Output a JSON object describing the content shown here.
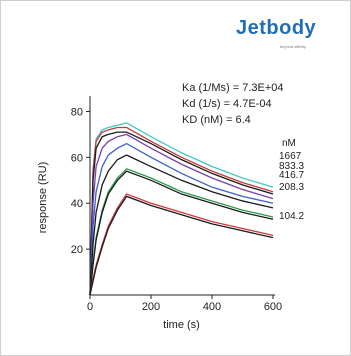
{
  "logo": {
    "name": "Jetbody",
    "tagline": "beyond affinity"
  },
  "annotations": {
    "ka": "Ka (1/Ms) = 7.3E+04",
    "kd": "Kd (1/s) = 4.7E-04",
    "KD": "KD (nM) = 6.4"
  },
  "chart_data": {
    "type": "line",
    "xlabel": "time (s)",
    "ylabel": "response (RU)",
    "xlim": [
      0,
      600
    ],
    "ylim": [
      0,
      85
    ],
    "xticks": [
      0,
      200,
      400,
      600
    ],
    "yticks": [
      20,
      40,
      60,
      80
    ],
    "grid": false,
    "legend_title": "nM",
    "association_end": 120,
    "concentrations": [
      "1667",
      "833.3",
      "416.7",
      "208.3",
      "104.2"
    ],
    "series": [
      {
        "name": "1667",
        "color": "#3fc9c9",
        "x": [
          0,
          10,
          20,
          40,
          60,
          90,
          120,
          200,
          300,
          400,
          500,
          600
        ],
        "y": [
          0,
          55,
          68,
          72,
          73,
          74,
          75,
          69,
          62,
          56,
          51,
          47
        ]
      },
      {
        "name": "1667",
        "color": "#c43a3a",
        "x": [
          0,
          10,
          20,
          40,
          60,
          90,
          120,
          200,
          300,
          400,
          500,
          600
        ],
        "y": [
          0,
          54,
          67,
          71,
          72,
          73,
          73,
          67,
          60,
          54,
          49,
          45
        ]
      },
      {
        "name": "833.3",
        "color": "#1a1a1a",
        "x": [
          0,
          10,
          20,
          40,
          60,
          90,
          120,
          200,
          300,
          400,
          500,
          600
        ],
        "y": [
          0,
          50,
          64,
          69,
          70,
          71,
          71,
          66,
          59,
          53,
          48,
          44
        ]
      },
      {
        "name": "833.3",
        "color": "#7a3fb0",
        "x": [
          0,
          10,
          20,
          40,
          60,
          90,
          120,
          200,
          300,
          400,
          500,
          600
        ],
        "y": [
          0,
          40,
          56,
          64,
          67,
          69,
          70,
          64,
          57,
          51,
          46,
          42
        ]
      },
      {
        "name": "416.7",
        "color": "#3a5fcf",
        "x": [
          0,
          10,
          20,
          40,
          60,
          90,
          120,
          200,
          300,
          400,
          500,
          600
        ],
        "y": [
          0,
          30,
          45,
          56,
          61,
          64,
          66,
          60,
          53,
          47,
          43,
          40
        ]
      },
      {
        "name": "416.7",
        "color": "#1a1a1a",
        "x": [
          0,
          10,
          20,
          40,
          60,
          90,
          120,
          200,
          300,
          400,
          500,
          600
        ],
        "y": [
          0,
          22,
          36,
          48,
          54,
          59,
          61,
          56,
          50,
          45,
          41,
          38
        ]
      },
      {
        "name": "208.3",
        "color": "#2e9a4a",
        "x": [
          0,
          10,
          20,
          40,
          60,
          90,
          120,
          200,
          300,
          400,
          500,
          600
        ],
        "y": [
          0,
          14,
          25,
          37,
          45,
          51,
          55,
          51,
          45,
          41,
          37,
          34
        ]
      },
      {
        "name": "208.3",
        "color": "#1a1a1a",
        "x": [
          0,
          10,
          20,
          40,
          60,
          90,
          120,
          200,
          300,
          400,
          500,
          600
        ],
        "y": [
          0,
          13,
          24,
          36,
          44,
          50,
          54,
          50,
          44,
          40,
          36,
          33
        ]
      },
      {
        "name": "104.2",
        "color": "#d23a3a",
        "x": [
          0,
          10,
          20,
          40,
          60,
          90,
          120,
          200,
          300,
          400,
          500,
          600
        ],
        "y": [
          0,
          7,
          13,
          22,
          30,
          38,
          44,
          40,
          36,
          32,
          29,
          26
        ]
      },
      {
        "name": "104.2",
        "color": "#1a1a1a",
        "x": [
          0,
          10,
          20,
          40,
          60,
          90,
          120,
          200,
          300,
          400,
          500,
          600
        ],
        "y": [
          0,
          6,
          12,
          21,
          29,
          37,
          43,
          39,
          35,
          31,
          28,
          25
        ]
      }
    ]
  }
}
